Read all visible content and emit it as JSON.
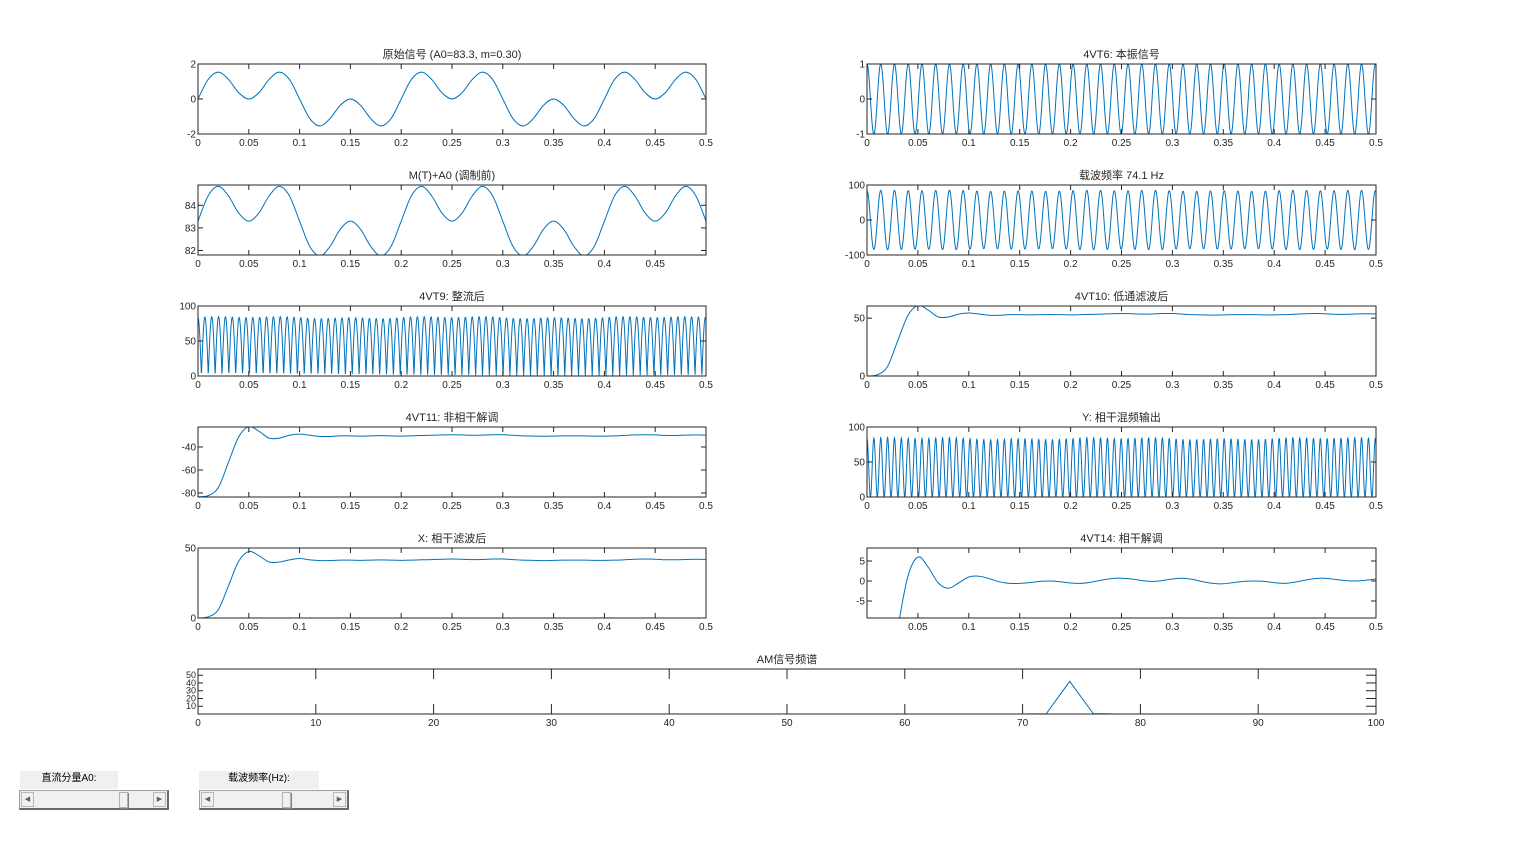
{
  "signal_params": {
    "A0": 83.3,
    "m": 0.3,
    "carrier_hz": 74.1
  },
  "colors": {
    "line": "#0072BD",
    "axes": "#262626"
  },
  "controls": [
    {
      "label": "直流分量A0:",
      "position": 0.78
    },
    {
      "label": "载波频率(Hz):",
      "position": 0.62
    }
  ],
  "chart_data": [
    {
      "type": "line",
      "title": "原始信号 (A0=83.3, m=0.30)",
      "xlim": [
        0,
        0.5
      ],
      "ylim": [
        -2,
        2
      ],
      "xticks": [
        0,
        0.05,
        0.1,
        0.15,
        0.2,
        0.25,
        0.3,
        0.35,
        0.4,
        0.45,
        0.5
      ],
      "yticks": [
        -2,
        0,
        2
      ],
      "t_start": 0,
      "t_step": 0.01,
      "y": [
        0,
        1.118,
        1.539,
        1.118,
        0.363,
        0,
        0.363,
        1.118,
        1.539,
        1.118,
        0,
        -1.118,
        -1.539,
        -1.118,
        -0.363,
        0,
        -0.363,
        -1.118,
        -1.539,
        -1.118,
        0,
        1.118,
        1.539,
        1.118,
        0.363,
        0,
        0.363,
        1.118,
        1.539,
        1.118,
        0,
        -1.118,
        -1.539,
        -1.118,
        -0.363,
        0,
        -0.363,
        -1.118,
        -1.539,
        -1.118,
        0,
        1.118,
        1.539,
        1.118,
        0.363,
        0,
        0.363,
        1.118,
        1.539,
        1.118,
        0
      ]
    },
    {
      "type": "line",
      "title": "4VT6: 本振信号",
      "xlim": [
        0,
        0.5
      ],
      "ylim": [
        -1,
        1
      ],
      "xticks": [
        0,
        0.05,
        0.1,
        0.15,
        0.2,
        0.25,
        0.3,
        0.35,
        0.4,
        0.45,
        0.5
      ],
      "yticks": [
        -1,
        0,
        1
      ],
      "signal": {
        "form": "carrier",
        "frequency_hz": 74.1,
        "amplitude": 1
      }
    },
    {
      "type": "line",
      "title": "M(T)+A0 (调制前)",
      "xlim": [
        0,
        0.5
      ],
      "ylim": [
        81.8,
        84.9
      ],
      "xticks": [
        0,
        0.05,
        0.1,
        0.15,
        0.2,
        0.25,
        0.3,
        0.35,
        0.4,
        0.45
      ],
      "yticks": [
        82,
        83,
        84
      ],
      "t_start": 0,
      "t_step": 0.01,
      "y": [
        83.3,
        84.418,
        84.839,
        84.418,
        83.663,
        83.3,
        83.663,
        84.418,
        84.839,
        84.418,
        83.3,
        82.182,
        81.761,
        82.182,
        82.937,
        83.3,
        82.937,
        82.182,
        81.761,
        82.182,
        83.3,
        84.418,
        84.839,
        84.418,
        83.663,
        83.3,
        83.663,
        84.418,
        84.839,
        84.418,
        83.3,
        82.182,
        81.761,
        82.182,
        82.937,
        83.3,
        82.937,
        82.182,
        81.761,
        82.182,
        83.3,
        84.418,
        84.839,
        84.418,
        83.663,
        83.3,
        83.663,
        84.418,
        84.839,
        84.418,
        83.3
      ]
    },
    {
      "type": "line",
      "title": "载波频率 74.1 Hz",
      "xlim": [
        0,
        0.5
      ],
      "ylim": [
        -100,
        100
      ],
      "xticks": [
        0,
        0.05,
        0.1,
        0.15,
        0.2,
        0.25,
        0.3,
        0.35,
        0.4,
        0.45,
        0.5
      ],
      "yticks": [
        -100,
        0,
        100
      ],
      "signal": {
        "form": "modulated",
        "frequency_hz": 74.1
      }
    },
    {
      "type": "line",
      "title": "4VT9: 整流后",
      "xlim": [
        0,
        0.5
      ],
      "ylim": [
        0,
        100
      ],
      "xticks": [
        0,
        0.05,
        0.1,
        0.15,
        0.2,
        0.25,
        0.3,
        0.35,
        0.4,
        0.45,
        0.5
      ],
      "yticks": [
        0,
        50,
        100
      ],
      "signal": {
        "form": "rectified",
        "frequency_hz": 74.1
      }
    },
    {
      "type": "line",
      "title": "4VT10: 低通滤波后",
      "xlim": [
        0,
        0.5
      ],
      "ylim": [
        0,
        60.5
      ],
      "xticks": [
        0,
        0.05,
        0.1,
        0.15,
        0.2,
        0.25,
        0.3,
        0.35,
        0.4,
        0.45,
        0.5
      ],
      "yticks": [
        0,
        50
      ],
      "t_start": 0,
      "t_step": 0.01,
      "y": [
        0,
        1,
        8,
        30,
        52,
        61,
        57,
        51,
        51,
        53.5,
        54.5,
        53.5,
        52.5,
        52.5,
        53,
        53,
        52.8,
        53,
        53.2,
        53,
        52.8,
        53,
        53.3,
        53.5,
        53.8,
        54,
        53.8,
        53.5,
        53.6,
        54,
        54,
        53.5,
        53,
        52.8,
        52.6,
        52.8,
        53,
        53,
        53,
        52.8,
        52.8,
        53,
        53.4,
        53.8,
        54,
        53.8,
        53.4,
        53.3,
        53.6,
        53.8,
        53.6
      ]
    },
    {
      "type": "line",
      "title": "4VT11: 非相干解调",
      "xlim": [
        0,
        0.5
      ],
      "ylim": [
        -83.5,
        -22.6
      ],
      "xticks": [
        0,
        0.05,
        0.1,
        0.15,
        0.2,
        0.25,
        0.3,
        0.35,
        0.4,
        0.45,
        0.5
      ],
      "yticks": [
        -80,
        -60,
        -40
      ],
      "t_start": 0,
      "t_step": 0.01,
      "y": [
        -83.3,
        -82.3,
        -75.3,
        -53.3,
        -31.3,
        -22.3,
        -26.3,
        -32.3,
        -32.3,
        -29.8,
        -28.8,
        -29.8,
        -30.8,
        -30.8,
        -30.3,
        -30.3,
        -30.5,
        -30.3,
        -30.1,
        -30.3,
        -30.5,
        -30.3,
        -30,
        -29.8,
        -29.5,
        -29.3,
        -29.5,
        -29.8,
        -29.7,
        -29.3,
        -29.3,
        -29.8,
        -30.3,
        -30.5,
        -30.7,
        -30.5,
        -30.3,
        -30.3,
        -30.3,
        -30.5,
        -30.5,
        -30.3,
        -29.9,
        -29.5,
        -29.3,
        -29.5,
        -29.9,
        -30,
        -29.7,
        -29.5,
        -29.7
      ]
    },
    {
      "type": "line",
      "title": "Y: 相干混频输出",
      "xlim": [
        0,
        0.5
      ],
      "ylim": [
        0,
        100
      ],
      "xticks": [
        0,
        0.05,
        0.1,
        0.15,
        0.2,
        0.25,
        0.3,
        0.35,
        0.4,
        0.45,
        0.5
      ],
      "yticks": [
        0,
        50,
        100
      ],
      "signal": {
        "form": "mixed",
        "frequency_hz": 74.1
      }
    },
    {
      "type": "line",
      "title": "X: 相干滤波后",
      "xlim": [
        0,
        0.5
      ],
      "ylim": [
        0,
        50
      ],
      "xticks": [
        0,
        0.05,
        0.1,
        0.15,
        0.2,
        0.25,
        0.3,
        0.35,
        0.4,
        0.45,
        0.5
      ],
      "yticks": [
        0,
        50
      ],
      "t_start": 0,
      "t_step": 0.01,
      "y": [
        0,
        0.8,
        6,
        23,
        40.5,
        47.5,
        44.5,
        40,
        40,
        41.5,
        42.5,
        41.5,
        41,
        41,
        41.3,
        41.3,
        41.2,
        41.3,
        41.5,
        41.3,
        41.2,
        41.3,
        41.6,
        41.7,
        42,
        42.1,
        42,
        41.7,
        41.8,
        42.1,
        42.1,
        41.7,
        41.3,
        41.2,
        41,
        41.2,
        41.3,
        41.3,
        41.3,
        41.2,
        41.2,
        41.3,
        41.6,
        42,
        42.1,
        42,
        41.6,
        41.6,
        41.8,
        42,
        41.8
      ]
    },
    {
      "type": "line",
      "title": "4VT14: 相干解调",
      "xlim": [
        0,
        0.5
      ],
      "ylim": [
        -9.25,
        8.25
      ],
      "xticks": [
        0.05,
        0.1,
        0.15,
        0.2,
        0.25,
        0.3,
        0.35,
        0.4,
        0.45,
        0.5
      ],
      "yticks": [
        -5,
        0,
        5
      ],
      "t_start": 0,
      "t_step": 0.01,
      "y": [
        null,
        null,
        null,
        -12,
        1,
        6,
        3.5,
        -0.5,
        -1.8,
        -0.5,
        1,
        1.2,
        0.6,
        -0.2,
        -0.6,
        -0.6,
        -0.4,
        -0.1,
        0,
        -0.2,
        -0.5,
        -0.6,
        -0.3,
        0.2,
        0.6,
        0.7,
        0.5,
        0.1,
        -0.1,
        0.1,
        0.5,
        0.7,
        0.4,
        -0.2,
        -0.6,
        -0.7,
        -0.4,
        -0.1,
        0,
        -0.1,
        -0.4,
        -0.6,
        -0.3,
        0.2,
        0.6,
        0.7,
        0.4,
        0.1,
        0,
        0.2,
        0.5
      ]
    },
    {
      "type": "line",
      "title": "AM信号频谱",
      "xlim": [
        0,
        100
      ],
      "ylim": [
        0,
        58
      ],
      "xticks": [
        0,
        10,
        20,
        30,
        40,
        50,
        60,
        70,
        80,
        90,
        100
      ],
      "yticks": [
        10,
        20,
        30,
        40,
        50
      ],
      "x": [
        0,
        70,
        72,
        74,
        76,
        78,
        100
      ],
      "y": [
        0,
        0,
        0.3,
        42,
        0.5,
        0,
        0
      ]
    }
  ]
}
